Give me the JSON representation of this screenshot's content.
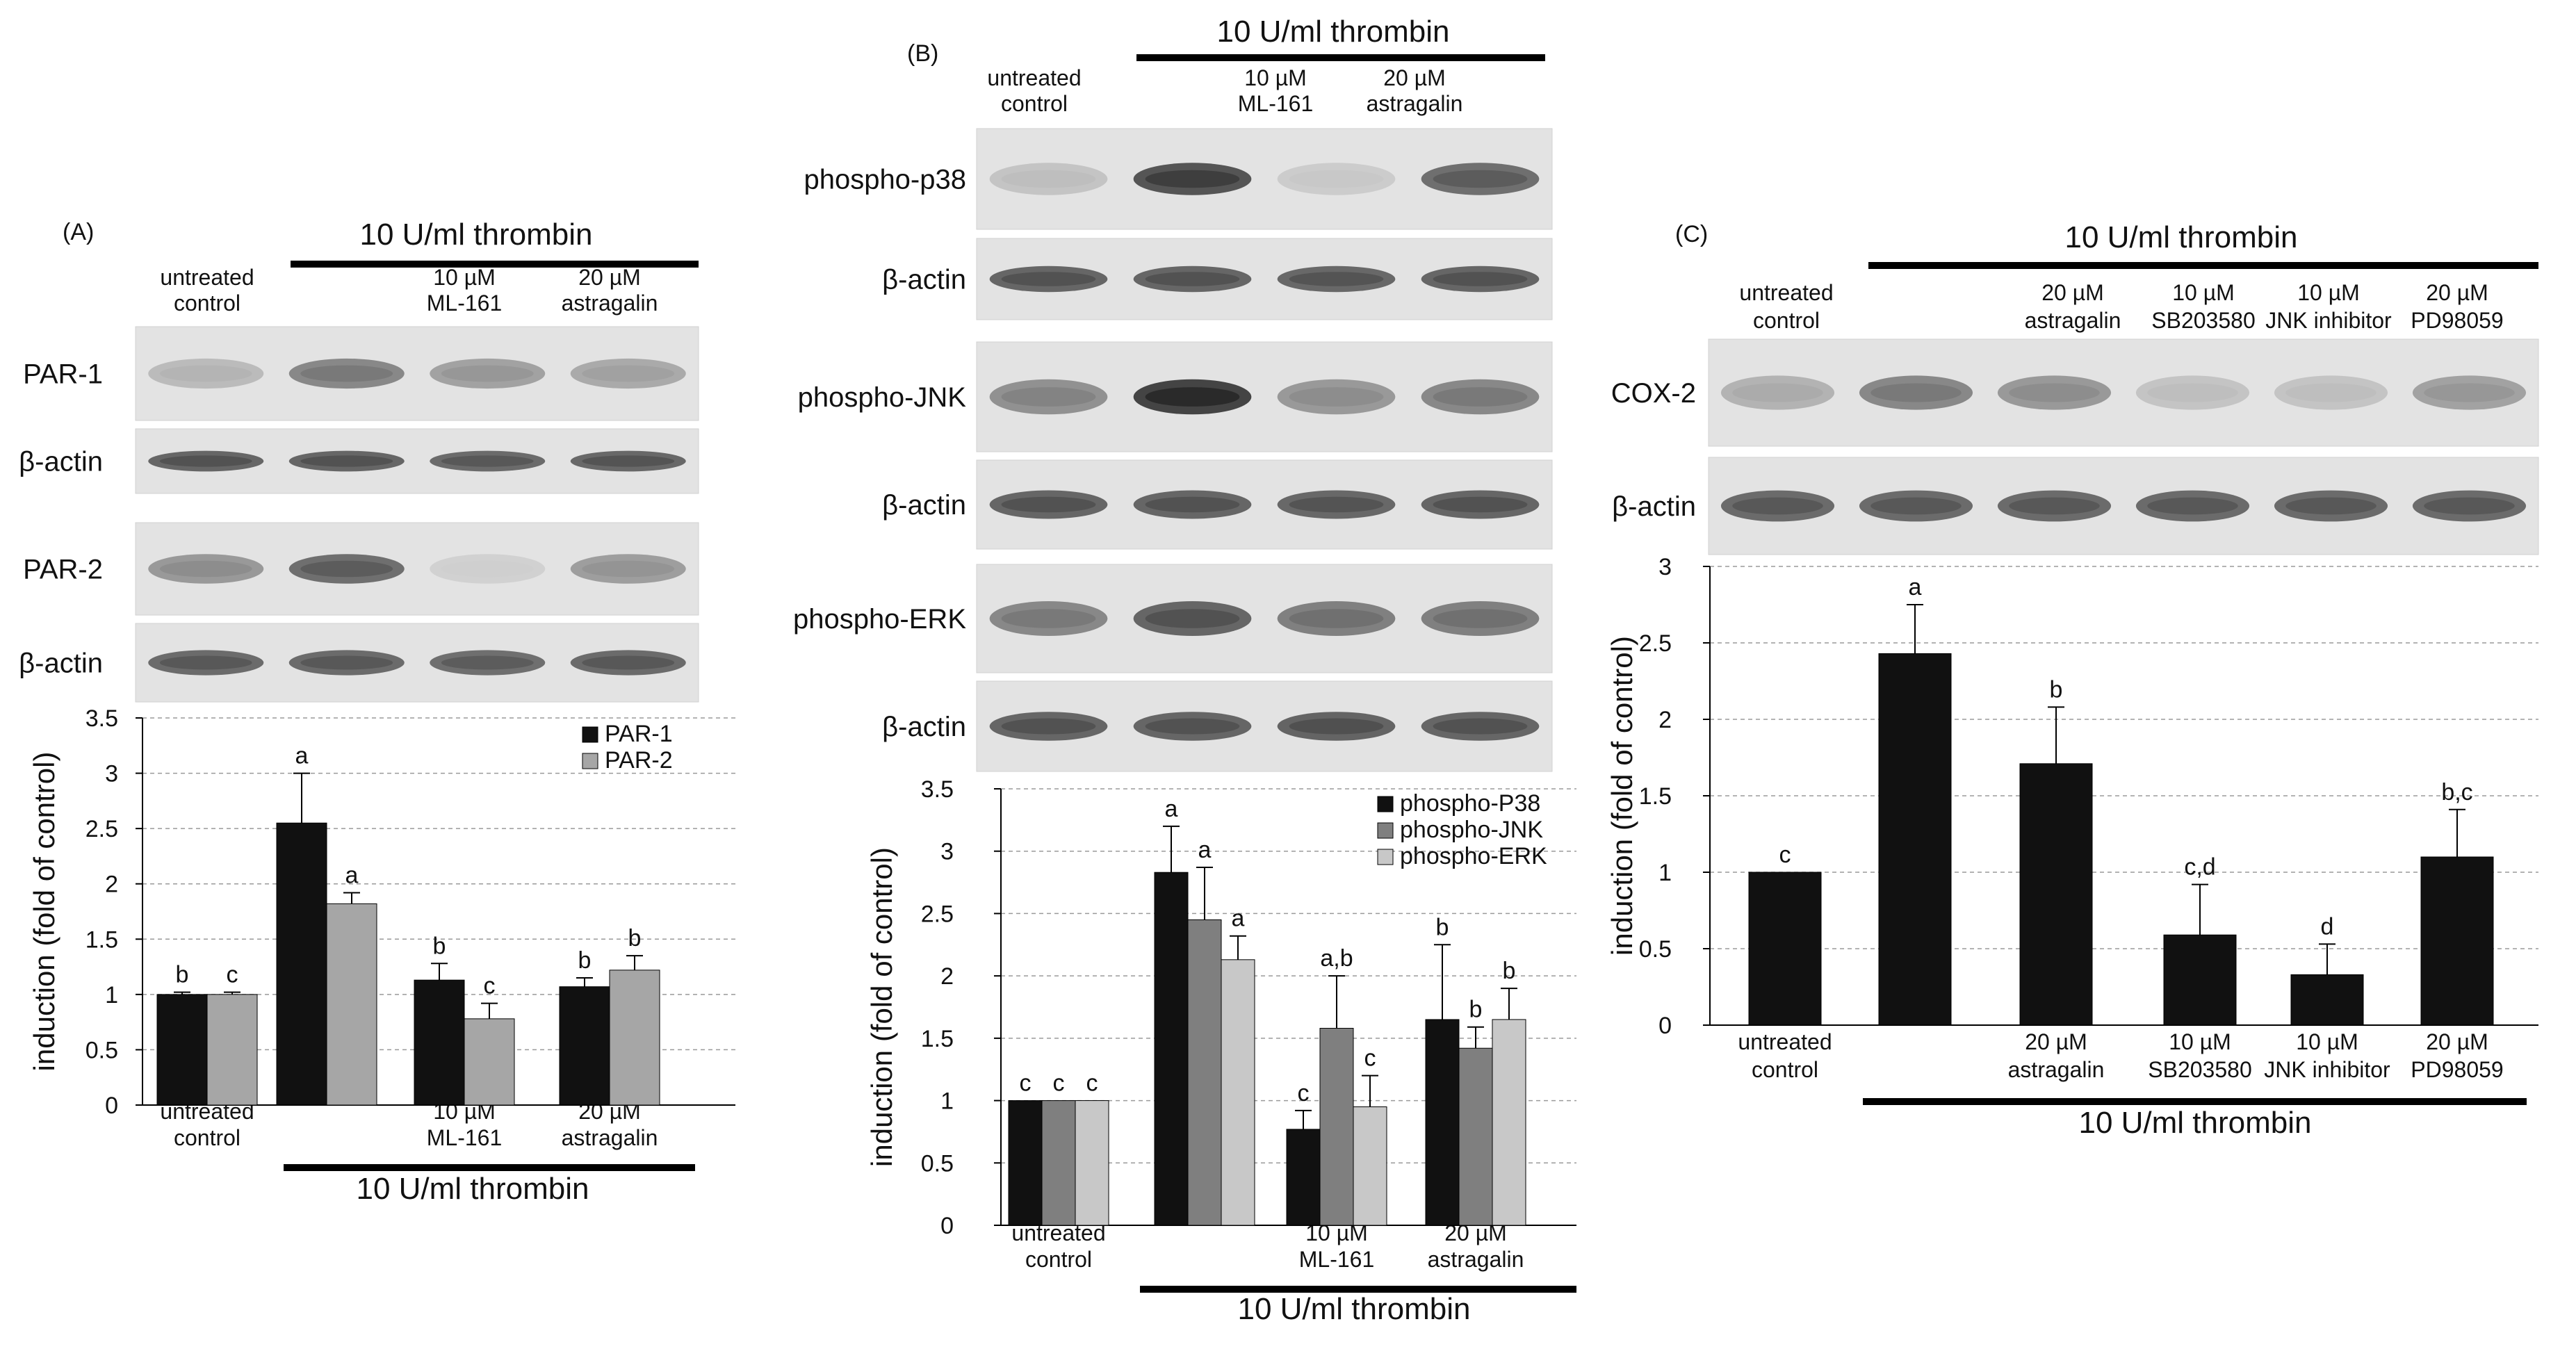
{
  "figure": {
    "panels": [
      {
        "id": "A",
        "letter": "(A)",
        "top_header": "10 U/ml thrombin",
        "bottom_header": "10 U/ml thrombin",
        "lanes": [
          {
            "line1": "untreated",
            "line2": "control"
          },
          {
            "line1": "",
            "line2": ""
          },
          {
            "line1": "10 µM",
            "line2": "ML-161"
          },
          {
            "line1": "20 µM",
            "line2": "astragalin"
          }
        ],
        "blots": [
          {
            "label": "PAR-1",
            "intensity": [
              0.25,
              0.55,
              0.4,
              0.35
            ]
          },
          {
            "label": "β-actin",
            "intensity": [
              0.75,
              0.75,
              0.72,
              0.74
            ]
          },
          {
            "label": "PAR-2",
            "intensity": [
              0.45,
              0.7,
              0.12,
              0.42
            ]
          },
          {
            "label": "β-actin",
            "intensity": [
              0.72,
              0.72,
              0.7,
              0.72
            ]
          }
        ],
        "bottom_lane_labels": [
          {
            "line1": "untreated",
            "line2": "control"
          },
          {
            "line1": "",
            "line2": ""
          },
          {
            "line1": "10 µM",
            "line2": "ML-161"
          },
          {
            "line1": "20 µM",
            "line2": "astragalin"
          }
        ]
      },
      {
        "id": "B",
        "letter": "(B)",
        "top_header": "10 U/ml thrombin",
        "bottom_header": "10 U/ml thrombin",
        "lanes": [
          {
            "line1": "untreated",
            "line2": "control"
          },
          {
            "line1": "",
            "line2": ""
          },
          {
            "line1": "10 µM",
            "line2": "ML-161"
          },
          {
            "line1": "20 µM",
            "line2": "astragalin"
          }
        ],
        "blots": [
          {
            "label": "phospho-p38",
            "intensity": [
              0.2,
              0.85,
              0.15,
              0.7
            ]
          },
          {
            "label": "β-actin",
            "intensity": [
              0.75,
              0.75,
              0.74,
              0.75
            ]
          },
          {
            "label": "phospho-JNK",
            "intensity": [
              0.5,
              0.95,
              0.45,
              0.55
            ]
          },
          {
            "label": "β-actin",
            "intensity": [
              0.75,
              0.75,
              0.74,
              0.75
            ]
          },
          {
            "label": "phospho-ERK",
            "intensity": [
              0.55,
              0.75,
              0.6,
              0.6
            ]
          },
          {
            "label": "β-actin",
            "intensity": [
              0.75,
              0.75,
              0.76,
              0.75
            ]
          }
        ],
        "bottom_lane_labels": [
          {
            "line1": "untreated",
            "line2": "control"
          },
          {
            "line1": "",
            "line2": ""
          },
          {
            "line1": "10 µM",
            "line2": "ML-161"
          },
          {
            "line1": "20 µM",
            "line2": "astragalin"
          }
        ]
      },
      {
        "id": "C",
        "letter": "(C)",
        "top_header": "10 U/ml thrombin",
        "bottom_header": "10 U/ml thrombin",
        "lanes": [
          {
            "line1": "untreated",
            "line2": "control"
          },
          {
            "line1": "",
            "line2": ""
          },
          {
            "line1": "20 µM",
            "line2": "astragalin"
          },
          {
            "line1": "10 µM",
            "line2": "SB203580"
          },
          {
            "line1": "10 µM",
            "line2": "JNK inhibitor"
          },
          {
            "line1": "20 µM",
            "line2": "PD98059"
          }
        ],
        "blots": [
          {
            "label": "COX-2",
            "intensity": [
              0.3,
              0.55,
              0.45,
              0.2,
              0.2,
              0.4
            ]
          },
          {
            "label": "β-actin",
            "intensity": [
              0.72,
              0.72,
              0.72,
              0.72,
              0.72,
              0.72
            ]
          }
        ],
        "bottom_lane_labels": [
          {
            "line1": "untreated",
            "line2": "control"
          },
          {
            "line1": "",
            "line2": ""
          },
          {
            "line1": "20 µM",
            "line2": "astragalin"
          },
          {
            "line1": "10 µM",
            "line2": "SB203580"
          },
          {
            "line1": "10 µM",
            "line2": "JNK inhibitor"
          },
          {
            "line1": "20 µM",
            "line2": "PD98059"
          }
        ]
      }
    ]
  },
  "chart_data": [
    {
      "type": "bar",
      "panel": "A",
      "title": "",
      "ylabel": "induction (fold of control)",
      "ylim": [
        0,
        3.5
      ],
      "yticks": [
        "0",
        "0.5",
        "1",
        "1.5",
        "2",
        "2.5",
        "3",
        "3.5"
      ],
      "grid": true,
      "legend": "top-right",
      "categories": [
        "untreated control",
        "",
        "10 µM ML-161",
        "20 µM astragalin"
      ],
      "series": [
        {
          "name": "PAR-1",
          "color": "#111111",
          "values": [
            1.0,
            2.55,
            1.13,
            1.07
          ],
          "errors": [
            0.02,
            0.45,
            0.15,
            0.08
          ],
          "labels": [
            "b",
            "a",
            "b",
            "b"
          ]
        },
        {
          "name": "PAR-2",
          "color": "#a6a6a6",
          "values": [
            1.0,
            1.82,
            0.78,
            1.22
          ],
          "errors": [
            0.02,
            0.1,
            0.14,
            0.13
          ],
          "labels": [
            "c",
            "a",
            "c",
            "b"
          ]
        }
      ]
    },
    {
      "type": "bar",
      "panel": "B",
      "title": "",
      "ylabel": "induction (fold of control)",
      "ylim": [
        0,
        3.5
      ],
      "yticks": [
        "0",
        "0.5",
        "1",
        "1.5",
        "2",
        "2.5",
        "3",
        "3.5"
      ],
      "grid": true,
      "legend": "top-right",
      "categories": [
        "untreated control",
        "",
        "10 µM ML-161",
        "20 µM astragalin"
      ],
      "series": [
        {
          "name": "phospho-P38",
          "color": "#111111",
          "values": [
            1.0,
            2.83,
            0.77,
            1.65
          ],
          "errors": [
            0.0,
            0.37,
            0.15,
            0.6
          ],
          "labels": [
            "c",
            "a",
            "c",
            "b"
          ]
        },
        {
          "name": "phospho-JNK",
          "color": "#7f7f7f",
          "values": [
            1.0,
            2.45,
            1.58,
            1.42
          ],
          "errors": [
            0.0,
            0.42,
            0.42,
            0.17
          ],
          "labels": [
            "c",
            "a",
            "a,b",
            "b"
          ]
        },
        {
          "name": "phospho-ERK",
          "color": "#c8c8c8",
          "values": [
            1.0,
            2.13,
            0.95,
            1.65
          ],
          "errors": [
            0.0,
            0.19,
            0.25,
            0.25
          ],
          "labels": [
            "c",
            "a",
            "c",
            "b"
          ]
        }
      ]
    },
    {
      "type": "bar",
      "panel": "C",
      "title": "",
      "ylabel": "induction (fold of control)",
      "ylim": [
        0,
        3
      ],
      "yticks": [
        "0",
        "0.5",
        "1",
        "1.5",
        "2",
        "2.5",
        "3"
      ],
      "grid": true,
      "legend": "none",
      "categories": [
        "untreated control",
        "",
        "20 µM astragalin",
        "10 µM SB203580",
        "10 µM JNK inhibitor",
        "20 µM PD98059"
      ],
      "series": [
        {
          "name": "",
          "color": "#111111",
          "values": [
            1.0,
            2.43,
            1.71,
            0.59,
            0.33,
            1.1
          ],
          "errors": [
            0.0,
            0.32,
            0.37,
            0.33,
            0.2,
            0.31
          ],
          "labels": [
            "c",
            "a",
            "b",
            "c,d",
            "d",
            "b,c"
          ]
        }
      ]
    }
  ]
}
